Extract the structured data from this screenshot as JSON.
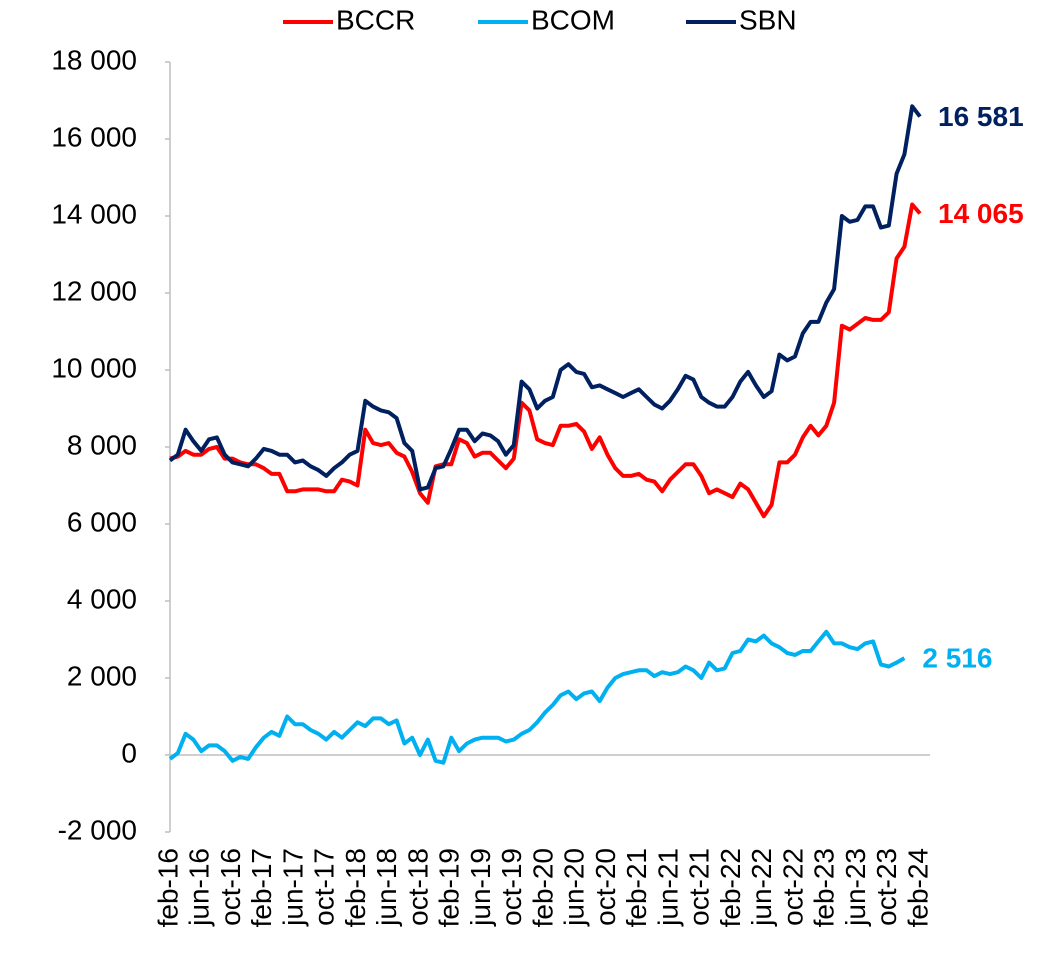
{
  "chart_data": {
    "type": "line",
    "categories": [
      "feb-16",
      null,
      null,
      null,
      "jun-16",
      null,
      null,
      null,
      "oct-16",
      null,
      null,
      null,
      "feb-17",
      null,
      null,
      null,
      "jun-17",
      null,
      null,
      null,
      "oct-17",
      null,
      null,
      null,
      "feb-18",
      null,
      null,
      null,
      "jun-18",
      null,
      null,
      null,
      "oct-18",
      null,
      null,
      null,
      "feb-19",
      null,
      null,
      null,
      "jun-19",
      null,
      null,
      null,
      "oct-19",
      null,
      null,
      null,
      "feb-20",
      null,
      null,
      null,
      "jun-20",
      null,
      null,
      null,
      "oct-20",
      null,
      null,
      null,
      "feb-21",
      null,
      null,
      null,
      "jun-21",
      null,
      null,
      null,
      "oct-21",
      null,
      null,
      null,
      "feb-22",
      null,
      null,
      null,
      "jun-22",
      null,
      null,
      null,
      "oct-22",
      null,
      null,
      null,
      "feb-23",
      null,
      null,
      null,
      "jun-23",
      null,
      null,
      null,
      "oct-23",
      null,
      null,
      null,
      "feb-24"
    ],
    "series": [
      {
        "name": "BCCR",
        "color": "#ff0000",
        "end_label": "14 065",
        "values": [
          7700,
          7750,
          7900,
          7800,
          7800,
          7950,
          8000,
          7700,
          7700,
          7600,
          7550,
          7550,
          7450,
          7300,
          7300,
          6850,
          6850,
          6900,
          6900,
          6900,
          6850,
          6850,
          7150,
          7100,
          7000,
          8450,
          8100,
          8050,
          8100,
          7850,
          7750,
          7350,
          6800,
          6550,
          7500,
          7550,
          7550,
          8200,
          8100,
          7750,
          7850,
          7850,
          7650,
          7450,
          7700,
          9150,
          8950,
          8200,
          8100,
          8050,
          8550,
          8550,
          8600,
          8400,
          7950,
          8250,
          7800,
          7450,
          7250,
          7250,
          7300,
          7150,
          7100,
          6850,
          7150,
          7350,
          7550,
          7550,
          7250,
          6800,
          6900,
          6800,
          6700,
          7050,
          6900,
          6550,
          6200,
          6500,
          7600,
          7600,
          7800,
          8250,
          8550,
          8300,
          8550,
          9150,
          11150,
          11050,
          11200,
          11350,
          11300,
          11300,
          11500,
          12900,
          13200,
          14300,
          14065
        ]
      },
      {
        "name": "BCOM",
        "color": "#00b0f0",
        "end_label": "2 516",
        "values": [
          -100,
          50,
          550,
          400,
          100,
          250,
          250,
          100,
          -150,
          -50,
          -100,
          200,
          450,
          600,
          500,
          1000,
          800,
          800,
          650,
          550,
          400,
          600,
          450,
          650,
          850,
          750,
          950,
          950,
          800,
          900,
          300,
          450,
          0,
          400,
          -150,
          -200,
          450,
          100,
          300,
          400,
          450,
          450,
          450,
          350,
          400,
          550,
          650,
          850,
          1100,
          1300,
          1550,
          1650,
          1450,
          1600,
          1650,
          1400,
          1750,
          2000,
          2100,
          2150,
          2200,
          2200,
          2050,
          2150,
          2100,
          2150,
          2300,
          2200,
          2000,
          2400,
          2200,
          2250,
          2650,
          2700,
          3000,
          2950,
          3100,
          2900,
          2800,
          2650,
          2600,
          2700,
          2700,
          2950,
          3200,
          2900,
          2900,
          2800,
          2750,
          2900,
          2950,
          2350,
          2300,
          2400,
          2516,
          null,
          null
        ]
      },
      {
        "name": "SBN",
        "color": "#002060",
        "end_label": "16 581",
        "values": [
          7650,
          7800,
          8450,
          8150,
          7900,
          8200,
          8250,
          7800,
          7600,
          7550,
          7500,
          7700,
          7950,
          7900,
          7800,
          7800,
          7600,
          7650,
          7500,
          7400,
          7250,
          7450,
          7600,
          7800,
          7900,
          9200,
          9050,
          8950,
          8900,
          8750,
          8100,
          7900,
          6900,
          6950,
          7450,
          7500,
          7950,
          8450,
          8450,
          8150,
          8350,
          8300,
          8150,
          7800,
          8050,
          9700,
          9500,
          9000,
          9200,
          9300,
          10000,
          10150,
          9950,
          9900,
          9550,
          9600,
          9500,
          9400,
          9300,
          9400,
          9500,
          9300,
          9100,
          9000,
          9200,
          9500,
          9850,
          9750,
          9300,
          9150,
          9050,
          9050,
          9300,
          9700,
          9950,
          9600,
          9300,
          9450,
          10400,
          10250,
          10350,
          10950,
          11250,
          11250,
          11750,
          12100,
          14000,
          13850,
          13900,
          14250,
          14250,
          13700,
          13750,
          15100,
          15600,
          16850,
          16581
        ]
      }
    ],
    "ylim": [
      -2000,
      18000
    ],
    "yticks": [
      {
        "value": -2000,
        "label": "-2 000"
      },
      0,
      {
        "value": 2000,
        "label": "2 000"
      },
      {
        "value": 4000,
        "label": "4 000"
      },
      {
        "value": 6000,
        "label": "6 000"
      },
      {
        "value": 8000,
        "label": "8 000"
      },
      {
        "value": 10000,
        "label": "10 000"
      },
      {
        "value": 12000,
        "label": "12 000"
      },
      {
        "value": 14000,
        "label": "14 000"
      },
      {
        "value": 16000,
        "label": "16 000"
      },
      {
        "value": 18000,
        "label": "18 000"
      }
    ],
    "grid": false,
    "legend": "top"
  }
}
